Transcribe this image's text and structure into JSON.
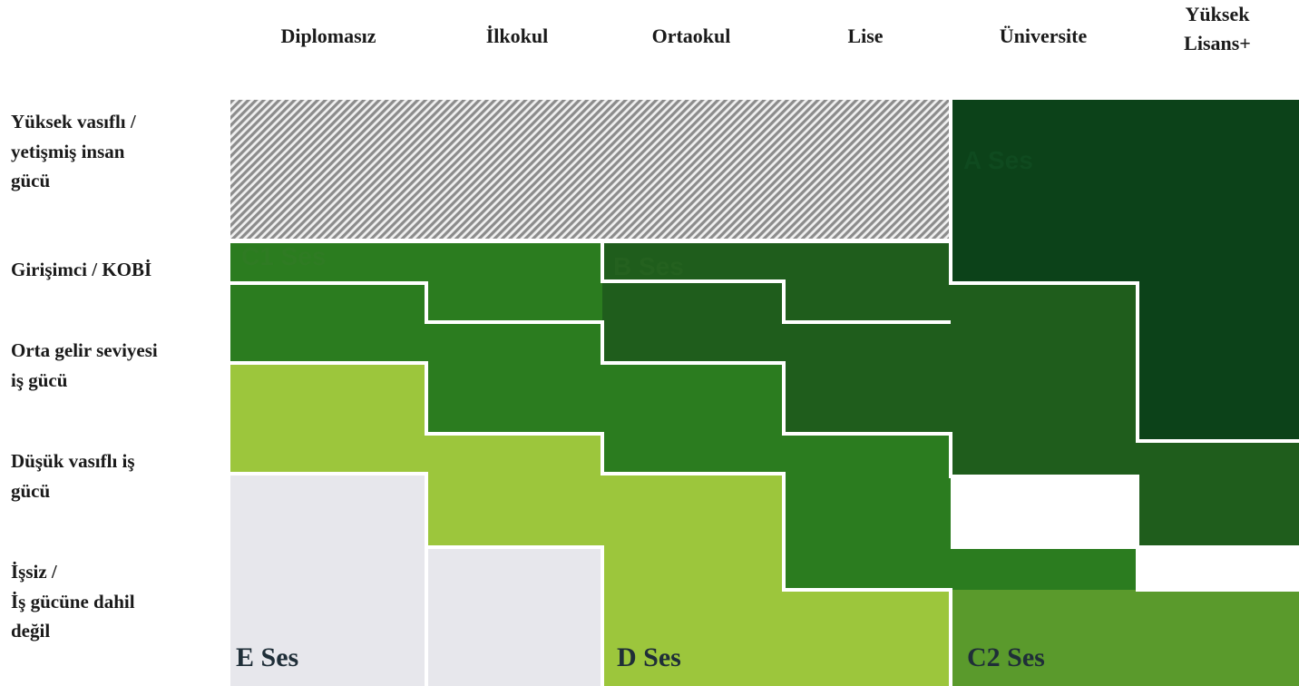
{
  "columns": [
    "Diplomasız",
    "İlkokul",
    "Ortaokul",
    "Lise",
    "Üniversite",
    "Yüksek\nLisans+"
  ],
  "rows": [
    "Yüksek vasıflı /\nyetişmiş insan\ngücü",
    "Girişimci / KOBİ",
    "Orta gelir seviyesi\niş gücü",
    "Düşük vasıflı iş\ngücü",
    "İşsiz /\nİş gücüne dahil\ndeğil"
  ],
  "segments": {
    "a": "A Ses",
    "b": "B Ses",
    "c1": "C1 Ses",
    "c2": "C2 Ses",
    "d": "D Ses",
    "e": "E Ses"
  },
  "colors": {
    "hatch": "#8c8c8c",
    "a": "#0c4219",
    "b": "#1f5d1c",
    "c1": "#2b7c1f",
    "c2": "#5a9a2c",
    "d": "#9cc63c",
    "e": "#e7e7ec",
    "separator": "#ffffff"
  }
}
